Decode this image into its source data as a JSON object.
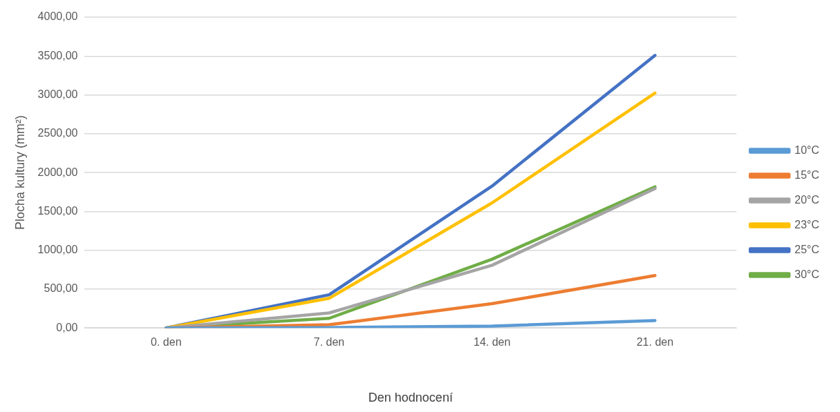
{
  "chart_data": {
    "type": "line",
    "xlabel": "Den hodnocení",
    "ylabel": "Plocha kultury (mm²)",
    "categories": [
      "0. den",
      "7. den",
      "14. den",
      "21. den"
    ],
    "series": [
      {
        "name": "10°C",
        "color": "#5b9bd5",
        "values": [
          0,
          5,
          23,
          96
        ]
      },
      {
        "name": "15°C",
        "color": "#ed7d31",
        "values": [
          0,
          41,
          312,
          674
        ]
      },
      {
        "name": "20°C",
        "color": "#a5a5a5",
        "values": [
          0,
          193,
          807,
          1794
        ]
      },
      {
        "name": "23°C",
        "color": "#ffc000",
        "values": [
          0,
          381,
          1610,
          3023
        ]
      },
      {
        "name": "25°C",
        "color": "#4472c4",
        "values": [
          0,
          427,
          1826,
          3509
        ]
      },
      {
        "name": "30°C",
        "color": "#70ad47",
        "values": [
          0,
          124,
          885,
          1817
        ]
      }
    ],
    "ylim": [
      0,
      4000
    ],
    "yticks": [
      {
        "value": 0,
        "label": "0,00"
      },
      {
        "value": 500,
        "label": "500,00"
      },
      {
        "value": 1000,
        "label": "1000,00"
      },
      {
        "value": 1500,
        "label": "1500,00"
      },
      {
        "value": 2000,
        "label": "2000,00"
      },
      {
        "value": 2500,
        "label": "2500,00"
      },
      {
        "value": 3000,
        "label": "3000,00"
      },
      {
        "value": 3500,
        "label": "3500,00"
      },
      {
        "value": 4000,
        "label": "4000,00"
      }
    ],
    "grid": "y",
    "legend": "right",
    "marker": "none",
    "line_style": "solid"
  }
}
